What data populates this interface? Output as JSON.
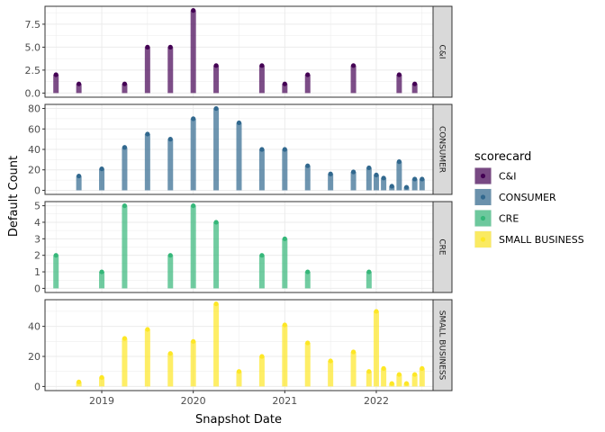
{
  "chart_data": {
    "type": "bar",
    "title": "",
    "xlabel": "Snapshot Date",
    "ylabel": "Default Count",
    "grid": true,
    "legend_position": "right",
    "legend": {
      "title": "scorecard",
      "items": [
        {
          "label": "C&I",
          "color": "#440154"
        },
        {
          "label": "CONSUMER",
          "color": "#31688E"
        },
        {
          "label": "CRE",
          "color": "#35B779"
        },
        {
          "label": "SMALL BUSINESS",
          "color": "#FDE725"
        }
      ]
    },
    "x_ticks": [
      "2019",
      "2020",
      "2021",
      "2022"
    ],
    "x_tick_years": [
      2019,
      2020,
      2021,
      2022
    ],
    "xlim": [
      2018.38,
      2022.62
    ],
    "panels": [
      {
        "strip": "C&I",
        "color": "#440154",
        "ylim": [
          -0.45,
          9.45
        ],
        "y_ticks": [
          0,
          2.5,
          5,
          7.5
        ],
        "y_tick_labels": [
          "0.0",
          "2.5",
          "5.0",
          "7.5"
        ],
        "points": [
          {
            "x": 2018.5,
            "y": 2
          },
          {
            "x": 2018.75,
            "y": 1
          },
          {
            "x": 2019.25,
            "y": 1
          },
          {
            "x": 2019.5,
            "y": 5
          },
          {
            "x": 2019.75,
            "y": 5
          },
          {
            "x": 2020.0,
            "y": 9
          },
          {
            "x": 2020.25,
            "y": 3
          },
          {
            "x": 2020.75,
            "y": 3
          },
          {
            "x": 2021.0,
            "y": 1
          },
          {
            "x": 2021.25,
            "y": 2
          },
          {
            "x": 2021.75,
            "y": 3
          },
          {
            "x": 2022.25,
            "y": 2
          },
          {
            "x": 2022.42,
            "y": 1
          }
        ]
      },
      {
        "strip": "CONSUMER",
        "color": "#31688E",
        "ylim": [
          -4,
          84
        ],
        "y_ticks": [
          0,
          20,
          40,
          60,
          80
        ],
        "y_tick_labels": [
          "0",
          "20",
          "40",
          "60",
          "80"
        ],
        "points": [
          {
            "x": 2018.75,
            "y": 14
          },
          {
            "x": 2019.0,
            "y": 21
          },
          {
            "x": 2019.25,
            "y": 42
          },
          {
            "x": 2019.5,
            "y": 55
          },
          {
            "x": 2019.75,
            "y": 50
          },
          {
            "x": 2020.0,
            "y": 70
          },
          {
            "x": 2020.25,
            "y": 80
          },
          {
            "x": 2020.5,
            "y": 66
          },
          {
            "x": 2020.75,
            "y": 40
          },
          {
            "x": 2021.0,
            "y": 40
          },
          {
            "x": 2021.25,
            "y": 24
          },
          {
            "x": 2021.5,
            "y": 16
          },
          {
            "x": 2021.75,
            "y": 18
          },
          {
            "x": 2021.92,
            "y": 22
          },
          {
            "x": 2022.0,
            "y": 15
          },
          {
            "x": 2022.08,
            "y": 12
          },
          {
            "x": 2022.17,
            "y": 4
          },
          {
            "x": 2022.25,
            "y": 28
          },
          {
            "x": 2022.33,
            "y": 3
          },
          {
            "x": 2022.42,
            "y": 11
          },
          {
            "x": 2022.5,
            "y": 11
          }
        ]
      },
      {
        "strip": "CRE",
        "color": "#35B779",
        "ylim": [
          -0.25,
          5.25
        ],
        "y_ticks": [
          0,
          1,
          2,
          3,
          4,
          5
        ],
        "y_tick_labels": [
          "0",
          "1",
          "2",
          "3",
          "4",
          "5"
        ],
        "points": [
          {
            "x": 2018.5,
            "y": 2
          },
          {
            "x": 2019.0,
            "y": 1
          },
          {
            "x": 2019.25,
            "y": 5
          },
          {
            "x": 2019.75,
            "y": 2
          },
          {
            "x": 2020.0,
            "y": 5
          },
          {
            "x": 2020.25,
            "y": 4
          },
          {
            "x": 2020.75,
            "y": 2
          },
          {
            "x": 2021.0,
            "y": 3
          },
          {
            "x": 2021.25,
            "y": 1
          },
          {
            "x": 2021.92,
            "y": 1
          }
        ]
      },
      {
        "strip": "SMALL BUSINESS",
        "color": "#FDE725",
        "ylim": [
          -2.75,
          57.75
        ],
        "y_ticks": [
          0,
          20,
          40
        ],
        "y_tick_labels": [
          "0",
          "20",
          "40"
        ],
        "points": [
          {
            "x": 2018.75,
            "y": 3
          },
          {
            "x": 2019.0,
            "y": 6
          },
          {
            "x": 2019.25,
            "y": 32
          },
          {
            "x": 2019.5,
            "y": 38
          },
          {
            "x": 2019.75,
            "y": 22
          },
          {
            "x": 2020.0,
            "y": 30
          },
          {
            "x": 2020.25,
            "y": 55
          },
          {
            "x": 2020.5,
            "y": 10
          },
          {
            "x": 2020.75,
            "y": 20
          },
          {
            "x": 2021.0,
            "y": 41
          },
          {
            "x": 2021.25,
            "y": 29
          },
          {
            "x": 2021.5,
            "y": 17
          },
          {
            "x": 2021.75,
            "y": 23
          },
          {
            "x": 2021.92,
            "y": 10
          },
          {
            "x": 2022.0,
            "y": 50
          },
          {
            "x": 2022.08,
            "y": 12
          },
          {
            "x": 2022.17,
            "y": 2
          },
          {
            "x": 2022.25,
            "y": 8
          },
          {
            "x": 2022.33,
            "y": 2
          },
          {
            "x": 2022.42,
            "y": 8
          },
          {
            "x": 2022.5,
            "y": 12
          }
        ]
      }
    ]
  }
}
